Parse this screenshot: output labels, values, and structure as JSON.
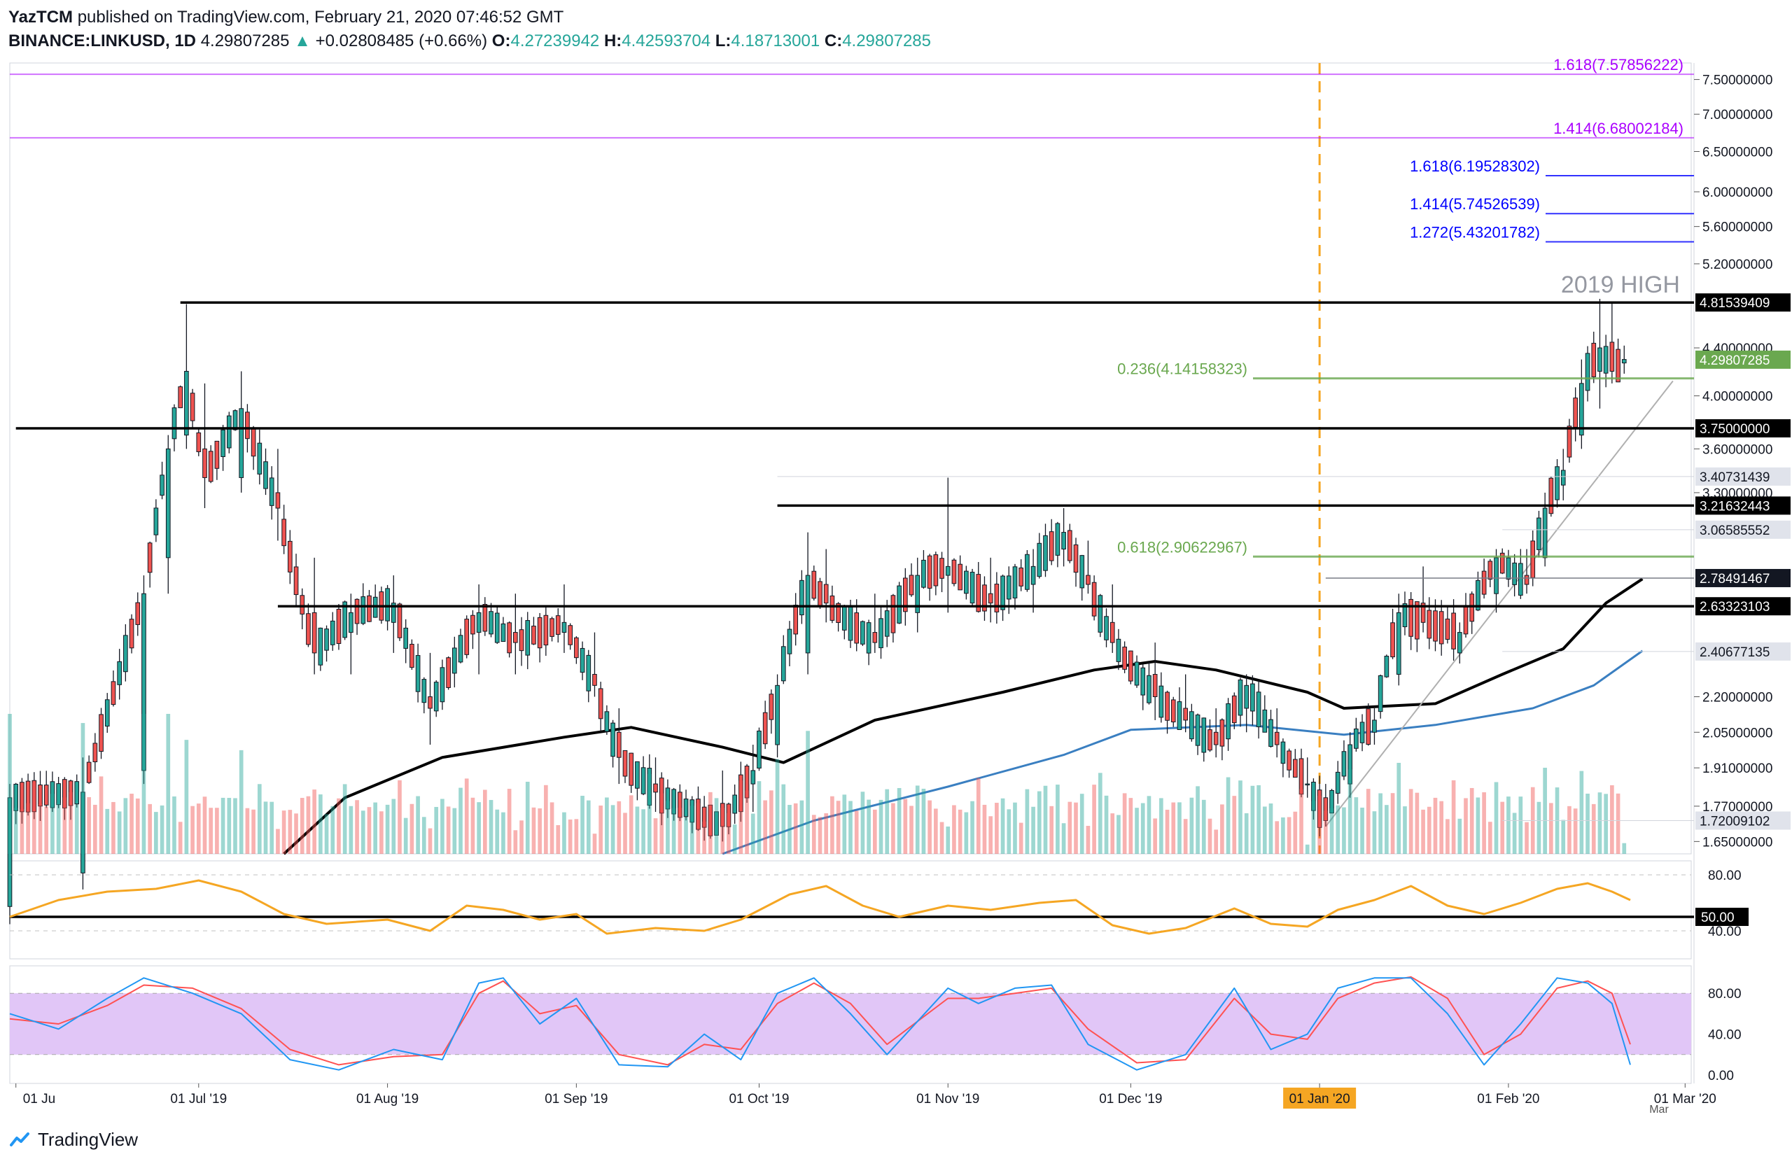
{
  "header": {
    "author": "YazTCM",
    "published_text": "published on TradingView.com, February 21, 2020 07:46:52 GMT",
    "symbol": "BINANCE:LINKUSD, 1D",
    "last": "4.29807285",
    "change": "+0.02808485 (+0.66%)",
    "open_label": "O:",
    "open": "4.27239942",
    "high_label": "H:",
    "high": "4.42593704",
    "low_label": "L:",
    "low": "4.18713001",
    "close_label": "C:",
    "close": "4.29807285"
  },
  "footer": {
    "brand": "TradingView"
  },
  "colors": {
    "up": "#26a69a",
    "down": "#ef5350",
    "fib_ext": "#aa00ff",
    "fib_blue": "#0000ff",
    "fib_green": "#6aa84f",
    "rsi": "#f5a623",
    "stoch_k": "#2196f3",
    "stoch_d": "#ff5252",
    "stoch_band": "#e1c6f7",
    "ma200": "#000000",
    "ma100": "#3a7fc1",
    "vline": "#f5a623"
  },
  "chart_data": {
    "type": "candlestick",
    "price_axis": {
      "range": [
        1.61,
        7.75
      ],
      "scale": "log",
      "ticks": [
        {
          "v": 7.5,
          "label": "7.50000000"
        },
        {
          "v": 7.0,
          "label": "7.00000000"
        },
        {
          "v": 6.5,
          "label": "6.50000000"
        },
        {
          "v": 6.0,
          "label": "6.00000000"
        },
        {
          "v": 5.6,
          "label": "5.60000000"
        },
        {
          "v": 5.2,
          "label": "5.20000000"
        },
        {
          "v": 4.4,
          "label": "4.40000000"
        },
        {
          "v": 4.0,
          "label": "4.00000000"
        },
        {
          "v": 3.6,
          "label": "3.60000000"
        },
        {
          "v": 3.3,
          "label": "3.30000000"
        },
        {
          "v": 2.2,
          "label": "2.20000000"
        },
        {
          "v": 2.05,
          "label": "2.05000000"
        },
        {
          "v": 1.91,
          "label": "1.91000000"
        },
        {
          "v": 1.77,
          "label": "1.77000000"
        },
        {
          "v": 1.65,
          "label": "1.65000000"
        }
      ]
    },
    "horizontal_levels": [
      {
        "v": 4.81539409,
        "label": "4.81539409",
        "style": "black",
        "start": "2019-06-28"
      },
      {
        "v": 3.75,
        "label": "3.75000000",
        "style": "black",
        "start": "2019-06-01"
      },
      {
        "v": 3.21632443,
        "label": "3.21632443",
        "style": "black",
        "start": "2019-10-04"
      },
      {
        "v": 2.63323103,
        "label": "2.63323103",
        "style": "black",
        "start": "2019-07-14"
      },
      {
        "v": 3.40731439,
        "label": "3.40731439",
        "style": "grey-box",
        "start": "2019-10-04"
      },
      {
        "v": 3.06585552,
        "label": "3.06585552",
        "style": "grey-box",
        "start": "2020-01-31"
      },
      {
        "v": 2.78491467,
        "label": "2.78491467",
        "style": "grey",
        "start": "2020-01-02"
      },
      {
        "v": 2.40677135,
        "label": "2.40677135",
        "style": "grey-box",
        "start": "2020-01-31"
      },
      {
        "v": 1.72009102,
        "label": "1.72009102",
        "style": "grey-box",
        "start": "2020-01-31"
      },
      {
        "v": 4.29807285,
        "label": "4.29807285",
        "style": "last"
      }
    ],
    "fib_levels": [
      {
        "v": 7.57856222,
        "label": "1.618(7.57856222)",
        "color": "purple"
      },
      {
        "v": 6.68002184,
        "label": "1.414(6.68002184)",
        "color": "purple"
      },
      {
        "v": 6.19528302,
        "label": "1.618(6.19528302)",
        "color": "blue"
      },
      {
        "v": 5.74526539,
        "label": "1.414(5.74526539)",
        "color": "blue"
      },
      {
        "v": 5.43201782,
        "label": "1.272(5.43201782)",
        "color": "blue"
      },
      {
        "v": 4.14158323,
        "label": "0.236(4.14158323)",
        "color": "green"
      },
      {
        "v": 2.90622967,
        "label": "0.618(2.90622967)",
        "color": "green"
      }
    ],
    "annotation": "2019 HIGH",
    "x_axis": {
      "start": "2019-05-31",
      "end": "2020-03-02",
      "ticks": [
        {
          "date": "2019-06-01",
          "label": "01 Ju"
        },
        {
          "date": "2019-07-01",
          "label": "01 Jul '19"
        },
        {
          "date": "2019-08-01",
          "label": "01 Aug '19"
        },
        {
          "date": "2019-09-01",
          "label": "01 Sep '19"
        },
        {
          "date": "2019-10-01",
          "label": "01 Oct '19"
        },
        {
          "date": "2019-11-01",
          "label": "01 Nov '19"
        },
        {
          "date": "2019-12-01",
          "label": "01 Dec '19"
        },
        {
          "date": "2020-01-01",
          "label": "01 Jan '20",
          "highlight": true
        },
        {
          "date": "2020-02-01",
          "label": "01 Feb '20"
        },
        {
          "date": "2020-03-01",
          "label": "01 Mar '20"
        }
      ],
      "extra_label": "Mar"
    },
    "vertical_marker": "2020-01-01",
    "trendline": {
      "from": [
        "2020-01-02",
        1.7
      ],
      "to": [
        "2020-02-28",
        4.12
      ]
    },
    "ohlc_anchors": [
      [
        "2019-05-31",
        1.45,
        1.85,
        1.4,
        1.8
      ],
      [
        "2019-06-12",
        1.55,
        1.95,
        1.5,
        1.82
      ],
      [
        "2019-06-22",
        1.9,
        2.8,
        1.85,
        2.7
      ],
      [
        "2019-06-26",
        2.9,
        3.7,
        2.7,
        3.6
      ],
      [
        "2019-06-29",
        3.7,
        4.8,
        3.6,
        4.2
      ],
      [
        "2019-07-02",
        3.6,
        4.1,
        3.2,
        3.4
      ],
      [
        "2019-07-08",
        3.4,
        4.2,
        3.3,
        3.9
      ],
      [
        "2019-07-14",
        3.3,
        3.6,
        3.0,
        3.2
      ],
      [
        "2019-07-20",
        2.6,
        2.9,
        2.3,
        2.4
      ],
      [
        "2019-07-26",
        2.5,
        2.7,
        2.3,
        2.6
      ],
      [
        "2019-08-02",
        2.55,
        2.8,
        2.4,
        2.65
      ],
      [
        "2019-08-08",
        2.2,
        2.4,
        2.0,
        2.15
      ],
      [
        "2019-08-16",
        2.5,
        2.75,
        2.3,
        2.6
      ],
      [
        "2019-08-22",
        2.5,
        2.7,
        2.3,
        2.45
      ],
      [
        "2019-08-30",
        2.5,
        2.75,
        2.4,
        2.55
      ],
      [
        "2019-09-04",
        2.3,
        2.5,
        2.2,
        2.25
      ],
      [
        "2019-09-08",
        2.05,
        2.15,
        1.85,
        1.95
      ],
      [
        "2019-09-14",
        1.85,
        1.95,
        1.75,
        1.82
      ],
      [
        "2019-09-25",
        1.78,
        1.9,
        1.65,
        1.7
      ],
      [
        "2019-09-30",
        1.85,
        2.0,
        1.75,
        1.9
      ],
      [
        "2019-10-04",
        2.0,
        2.3,
        1.95,
        2.25
      ],
      [
        "2019-10-09",
        2.4,
        3.05,
        2.3,
        2.8
      ],
      [
        "2019-10-12",
        2.75,
        2.95,
        2.55,
        2.65
      ],
      [
        "2019-10-20",
        2.5,
        2.7,
        2.4,
        2.45
      ],
      [
        "2019-10-27",
        2.6,
        2.9,
        2.5,
        2.8
      ],
      [
        "2019-11-01",
        2.8,
        3.4,
        2.6,
        2.85
      ],
      [
        "2019-11-08",
        2.7,
        2.9,
        2.55,
        2.65
      ],
      [
        "2019-11-15",
        2.75,
        2.95,
        2.6,
        2.85
      ],
      [
        "2019-11-20",
        2.95,
        3.2,
        2.85,
        3.05
      ],
      [
        "2019-11-24",
        2.8,
        3.0,
        2.7,
        2.75
      ],
      [
        "2019-11-28",
        2.55,
        2.75,
        2.4,
        2.45
      ],
      [
        "2019-12-05",
        2.3,
        2.45,
        2.1,
        2.2
      ],
      [
        "2019-12-10",
        2.15,
        2.3,
        2.05,
        2.1
      ],
      [
        "2019-12-15",
        2.05,
        2.15,
        1.95,
        2.0
      ],
      [
        "2019-12-20",
        2.15,
        2.3,
        2.05,
        2.25
      ],
      [
        "2019-12-25",
        2.05,
        2.15,
        1.95,
        2.0
      ],
      [
        "2019-12-30",
        1.85,
        1.95,
        1.8,
        1.85
      ],
      [
        "2020-01-02",
        1.8,
        1.85,
        1.7,
        1.72
      ],
      [
        "2020-01-06",
        1.85,
        2.05,
        1.8,
        2.0
      ],
      [
        "2020-01-10",
        2.05,
        2.15,
        2.0,
        2.1
      ],
      [
        "2020-01-14",
        2.3,
        2.7,
        2.25,
        2.6
      ],
      [
        "2020-01-18",
        2.65,
        2.85,
        2.5,
        2.55
      ],
      [
        "2020-01-24",
        2.4,
        2.55,
        2.35,
        2.5
      ],
      [
        "2020-01-30",
        2.7,
        2.95,
        2.6,
        2.9
      ],
      [
        "2020-02-04",
        2.8,
        2.95,
        2.7,
        2.75
      ],
      [
        "2020-02-07",
        2.9,
        3.3,
        2.85,
        3.2
      ],
      [
        "2020-02-10",
        3.35,
        3.6,
        3.25,
        3.45
      ],
      [
        "2020-02-13",
        3.7,
        4.3,
        3.6,
        4.1
      ],
      [
        "2020-02-16",
        4.2,
        4.85,
        3.9,
        4.4
      ],
      [
        "2020-02-18",
        4.45,
        4.82,
        4.1,
        4.2
      ],
      [
        "2020-02-20",
        4.27,
        4.42,
        4.18,
        4.3
      ]
    ],
    "ma200": [
      [
        "2019-07-15",
        1.61
      ],
      [
        "2019-07-25",
        1.8
      ],
      [
        "2019-08-10",
        1.95
      ],
      [
        "2019-08-30",
        2.03
      ],
      [
        "2019-09-10",
        2.07
      ],
      [
        "2019-09-25",
        1.99
      ],
      [
        "2019-10-05",
        1.93
      ],
      [
        "2019-10-20",
        2.1
      ],
      [
        "2019-11-10",
        2.22
      ],
      [
        "2019-11-25",
        2.32
      ],
      [
        "2019-12-05",
        2.36
      ],
      [
        "2019-12-15",
        2.32
      ],
      [
        "2019-12-30",
        2.22
      ],
      [
        "2020-01-05",
        2.15
      ],
      [
        "2020-01-20",
        2.17
      ],
      [
        "2020-01-31",
        2.3
      ],
      [
        "2020-02-10",
        2.42
      ],
      [
        "2020-02-17",
        2.65
      ],
      [
        "2020-02-23",
        2.78
      ]
    ],
    "ma100": [
      [
        "2019-09-25",
        1.61
      ],
      [
        "2019-10-10",
        1.72
      ],
      [
        "2019-11-01",
        1.84
      ],
      [
        "2019-11-20",
        1.96
      ],
      [
        "2019-12-01",
        2.06
      ],
      [
        "2019-12-20",
        2.08
      ],
      [
        "2020-01-05",
        2.04
      ],
      [
        "2020-01-20",
        2.08
      ],
      [
        "2020-02-05",
        2.15
      ],
      [
        "2020-02-15",
        2.25
      ],
      [
        "2020-02-23",
        2.41
      ]
    ],
    "rsi": {
      "ticks": [
        {
          "v": 80,
          "label": "80.00"
        },
        {
          "v": 40,
          "label": "40.00"
        }
      ],
      "level": {
        "v": 50,
        "label": "50.00"
      },
      "values": [
        [
          "2019-05-31",
          50
        ],
        [
          "2019-06-08",
          62
        ],
        [
          "2019-06-16",
          68
        ],
        [
          "2019-06-24",
          70
        ],
        [
          "2019-07-01",
          76
        ],
        [
          "2019-07-08",
          68
        ],
        [
          "2019-07-15",
          52
        ],
        [
          "2019-07-22",
          45
        ],
        [
          "2019-08-01",
          48
        ],
        [
          "2019-08-08",
          40
        ],
        [
          "2019-08-14",
          58
        ],
        [
          "2019-08-20",
          55
        ],
        [
          "2019-08-26",
          48
        ],
        [
          "2019-09-01",
          52
        ],
        [
          "2019-09-06",
          38
        ],
        [
          "2019-09-14",
          42
        ],
        [
          "2019-09-22",
          40
        ],
        [
          "2019-09-28",
          48
        ],
        [
          "2019-10-06",
          66
        ],
        [
          "2019-10-12",
          72
        ],
        [
          "2019-10-18",
          58
        ],
        [
          "2019-10-24",
          50
        ],
        [
          "2019-11-01",
          58
        ],
        [
          "2019-11-08",
          55
        ],
        [
          "2019-11-16",
          60
        ],
        [
          "2019-11-22",
          62
        ],
        [
          "2019-11-28",
          44
        ],
        [
          "2019-12-04",
          38
        ],
        [
          "2019-12-10",
          42
        ],
        [
          "2019-12-18",
          56
        ],
        [
          "2019-12-24",
          45
        ],
        [
          "2019-12-30",
          43
        ],
        [
          "2020-01-04",
          55
        ],
        [
          "2020-01-10",
          62
        ],
        [
          "2020-01-16",
          72
        ],
        [
          "2020-01-22",
          58
        ],
        [
          "2020-01-28",
          52
        ],
        [
          "2020-02-03",
          60
        ],
        [
          "2020-02-09",
          70
        ],
        [
          "2020-02-14",
          74
        ],
        [
          "2020-02-18",
          68
        ],
        [
          "2020-02-21",
          62
        ]
      ]
    },
    "stoch": {
      "ticks": [
        {
          "v": 80,
          "label": "80.00"
        },
        {
          "v": 40,
          "label": "40.00"
        },
        {
          "v": 0,
          "label": "0.00"
        }
      ],
      "band": [
        20,
        80
      ],
      "k": [
        [
          "2019-05-31",
          60
        ],
        [
          "2019-06-08",
          45
        ],
        [
          "2019-06-16",
          75
        ],
        [
          "2019-06-22",
          95
        ],
        [
          "2019-06-30",
          80
        ],
        [
          "2019-07-08",
          60
        ],
        [
          "2019-07-16",
          15
        ],
        [
          "2019-07-24",
          5
        ],
        [
          "2019-08-02",
          25
        ],
        [
          "2019-08-10",
          15
        ],
        [
          "2019-08-16",
          90
        ],
        [
          "2019-08-20",
          95
        ],
        [
          "2019-08-26",
          50
        ],
        [
          "2019-09-01",
          75
        ],
        [
          "2019-09-08",
          10
        ],
        [
          "2019-09-16",
          8
        ],
        [
          "2019-09-22",
          40
        ],
        [
          "2019-09-28",
          15
        ],
        [
          "2019-10-04",
          80
        ],
        [
          "2019-10-10",
          95
        ],
        [
          "2019-10-16",
          60
        ],
        [
          "2019-10-22",
          20
        ],
        [
          "2019-11-01",
          85
        ],
        [
          "2019-11-06",
          70
        ],
        [
          "2019-11-12",
          85
        ],
        [
          "2019-11-18",
          88
        ],
        [
          "2019-11-24",
          30
        ],
        [
          "2019-12-02",
          5
        ],
        [
          "2019-12-10",
          20
        ],
        [
          "2019-12-18",
          85
        ],
        [
          "2019-12-24",
          25
        ],
        [
          "2019-12-30",
          40
        ],
        [
          "2020-01-04",
          85
        ],
        [
          "2020-01-10",
          95
        ],
        [
          "2020-01-16",
          95
        ],
        [
          "2020-01-22",
          60
        ],
        [
          "2020-01-28",
          10
        ],
        [
          "2020-02-03",
          50
        ],
        [
          "2020-02-09",
          95
        ],
        [
          "2020-02-14",
          90
        ],
        [
          "2020-02-18",
          70
        ],
        [
          "2020-02-21",
          10
        ]
      ],
      "d": [
        [
          "2019-05-31",
          55
        ],
        [
          "2019-06-08",
          50
        ],
        [
          "2019-06-16",
          68
        ],
        [
          "2019-06-22",
          88
        ],
        [
          "2019-06-30",
          85
        ],
        [
          "2019-07-08",
          65
        ],
        [
          "2019-07-16",
          25
        ],
        [
          "2019-07-24",
          10
        ],
        [
          "2019-08-02",
          18
        ],
        [
          "2019-08-10",
          20
        ],
        [
          "2019-08-16",
          80
        ],
        [
          "2019-08-20",
          92
        ],
        [
          "2019-08-26",
          60
        ],
        [
          "2019-09-01",
          68
        ],
        [
          "2019-09-08",
          20
        ],
        [
          "2019-09-16",
          10
        ],
        [
          "2019-09-22",
          30
        ],
        [
          "2019-09-28",
          25
        ],
        [
          "2019-10-04",
          70
        ],
        [
          "2019-10-10",
          90
        ],
        [
          "2019-10-16",
          70
        ],
        [
          "2019-10-22",
          30
        ],
        [
          "2019-11-01",
          75
        ],
        [
          "2019-11-06",
          75
        ],
        [
          "2019-11-12",
          80
        ],
        [
          "2019-11-18",
          85
        ],
        [
          "2019-11-24",
          45
        ],
        [
          "2019-12-02",
          12
        ],
        [
          "2019-12-10",
          15
        ],
        [
          "2019-12-18",
          75
        ],
        [
          "2019-12-24",
          40
        ],
        [
          "2019-12-30",
          35
        ],
        [
          "2020-01-04",
          75
        ],
        [
          "2020-01-10",
          90
        ],
        [
          "2020-01-16",
          96
        ],
        [
          "2020-01-22",
          75
        ],
        [
          "2020-01-28",
          20
        ],
        [
          "2020-02-03",
          40
        ],
        [
          "2020-02-09",
          85
        ],
        [
          "2020-02-14",
          92
        ],
        [
          "2020-02-18",
          80
        ],
        [
          "2020-02-21",
          30
        ]
      ]
    }
  }
}
